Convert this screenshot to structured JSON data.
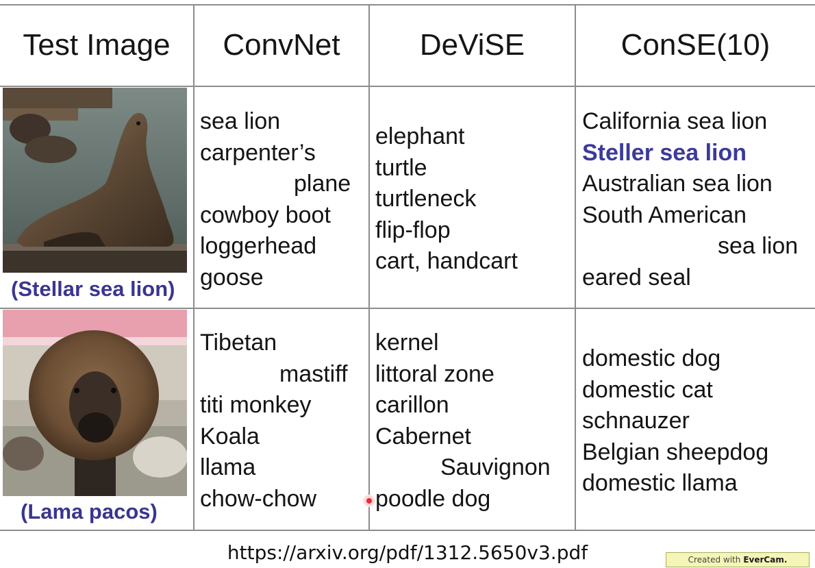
{
  "headers": [
    "Test Image",
    "ConvNet",
    "DeViSE",
    "ConSE(10)"
  ],
  "rows": [
    {
      "caption": "(Stellar sea lion)",
      "image_alt": "sea lion photo",
      "convnet": [
        "sea lion",
        "carpenter’s",
        "plane",
        "cowboy boot",
        "loggerhead",
        "goose"
      ],
      "devise": [
        "elephant",
        "turtle",
        "turtleneck",
        "flip-flop",
        "cart, handcart"
      ],
      "conse": [
        "California sea lion",
        "Steller sea lion",
        "Australian sea lion",
        "South American",
        "sea lion",
        "eared seal"
      ]
    },
    {
      "caption": "(Lama pacos)",
      "image_alt": "alpaca photo",
      "convnet": [
        "Tibetan",
        "mastiff",
        "titi monkey",
        "Koala",
        "llama",
        "chow-chow"
      ],
      "devise": [
        "kernel",
        "littoral zone",
        "carillon",
        "Cabernet",
        "Sauvignon",
        "poodle dog"
      ],
      "conse": [
        "domestic dog",
        "domestic cat",
        "schnauzer",
        "Belgian sheepdog",
        "domestic llama"
      ]
    }
  ],
  "footer": {
    "url": "https://arxiv.org/pdf/1312.5650v3.pdf",
    "watermark_prefix": "Created with",
    "watermark_brand": "EverCam."
  },
  "colors": {
    "highlight": "#3c3a9a",
    "caption": "#3a3590",
    "grid": "#8c8c8c"
  }
}
